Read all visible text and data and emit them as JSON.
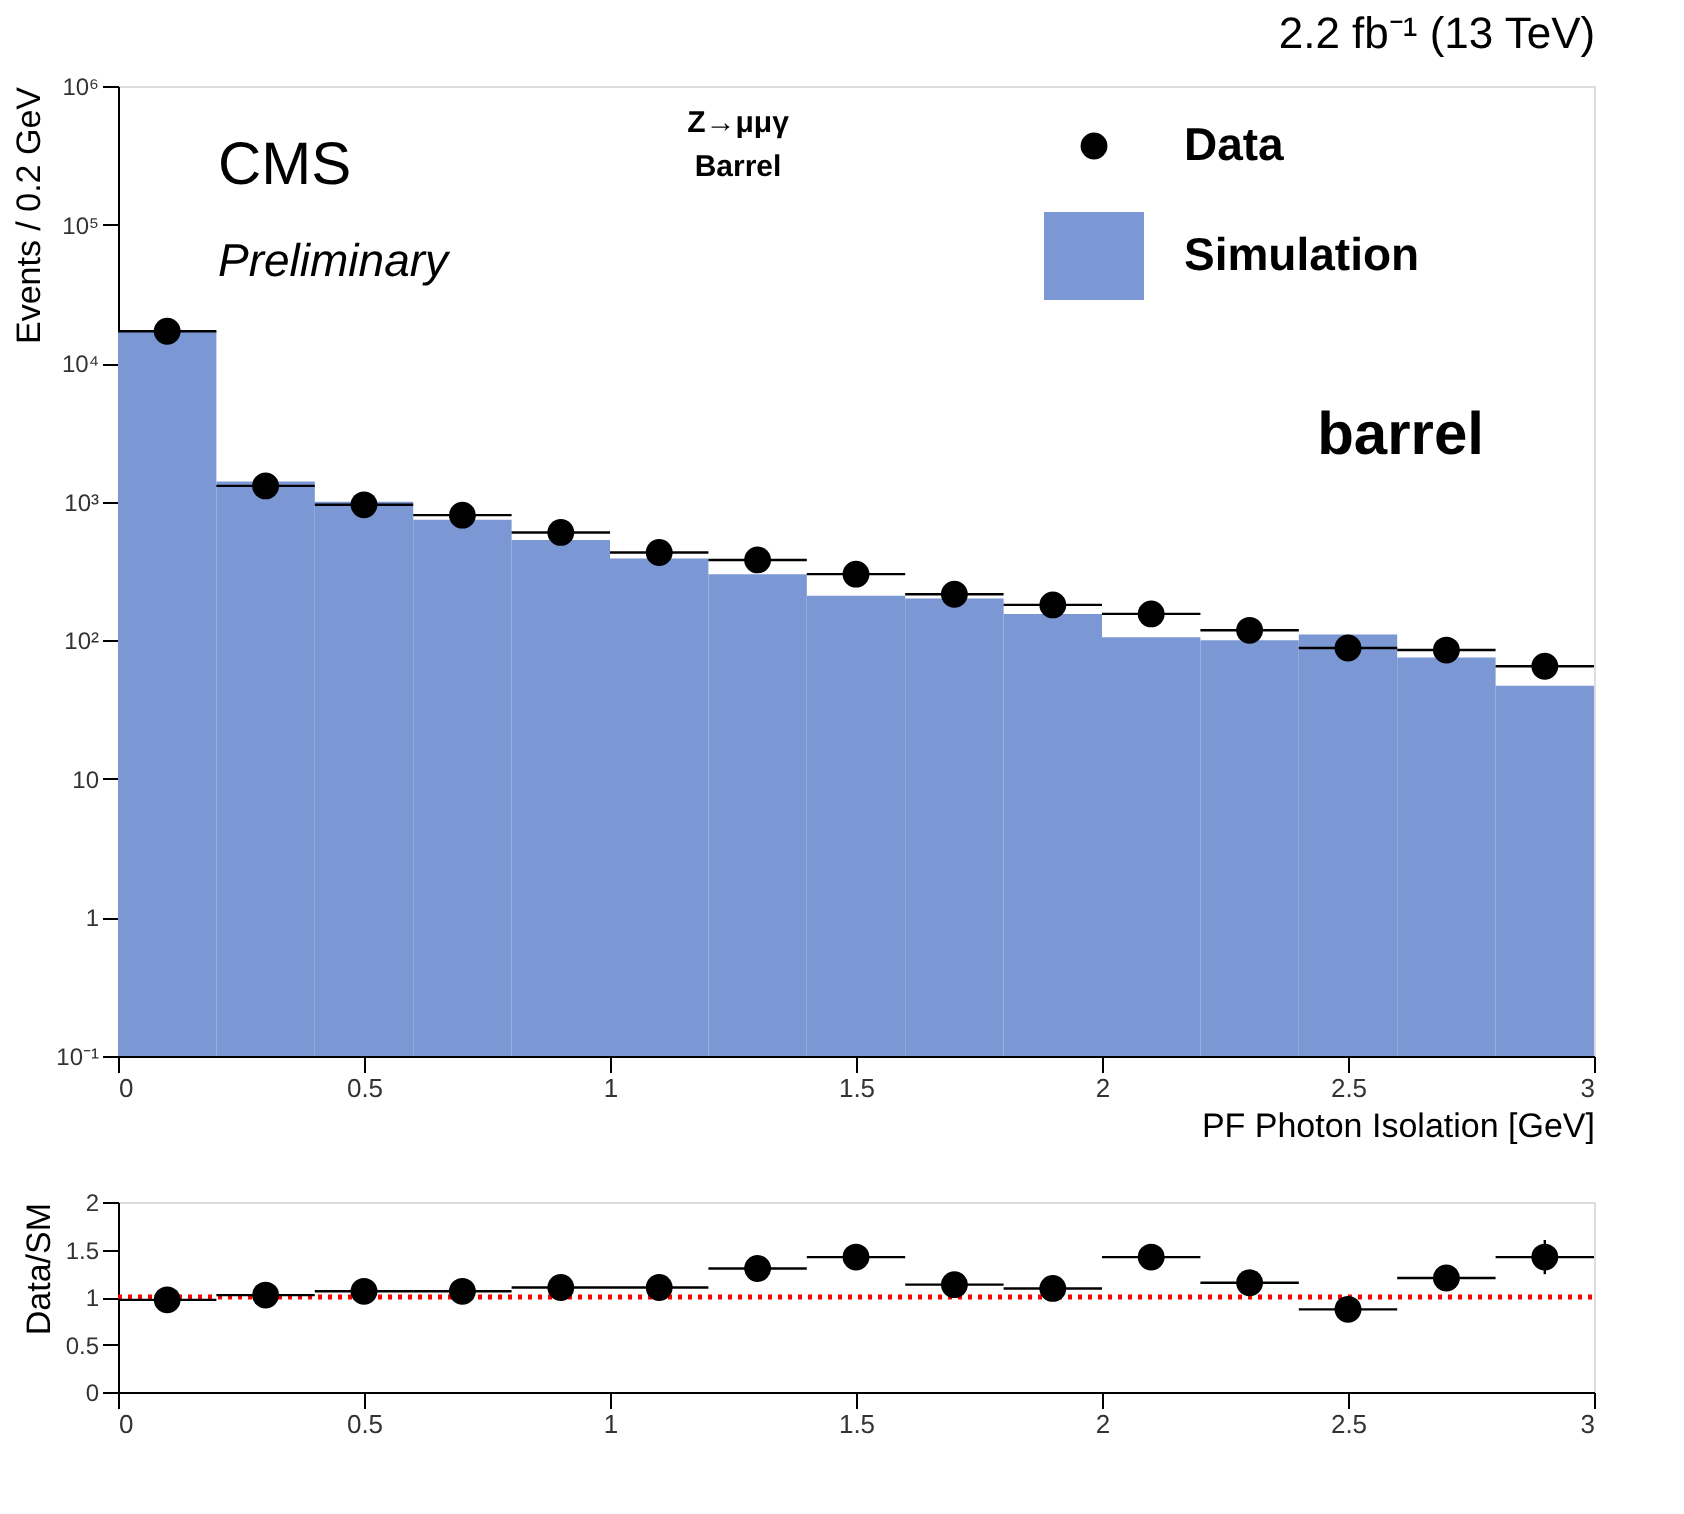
{
  "chart_data": [
    {
      "type": "histogram",
      "title": "2.2 fb⁻¹ (13 TeV)",
      "xlabel": "PF Photon Isolation [GeV]",
      "ylabel": "Events / 0.2 GeV",
      "bins": [
        0,
        0.2,
        0.4,
        0.6,
        0.8,
        1.0,
        1.2,
        1.4,
        1.6,
        1.8,
        2.0,
        2.2,
        2.4,
        2.6,
        2.8,
        3.0
      ],
      "series": [
        {
          "name": "Data",
          "type": "scatter",
          "color": "#000000",
          "x": [
            0.1,
            0.3,
            0.5,
            0.7,
            0.9,
            1.1,
            1.3,
            1.5,
            1.7,
            1.9,
            2.1,
            2.3,
            2.5,
            2.7,
            2.9
          ],
          "values": [
            17000,
            1300,
            950,
            800,
            600,
            430,
            380,
            300,
            215,
            180,
            155,
            118,
            88,
            85,
            65
          ],
          "xerrors": [
            0.1,
            0.1,
            0.1,
            0.1,
            0.1,
            0.1,
            0.1,
            0.1,
            0.1,
            0.1,
            0.1,
            0.1,
            0.1,
            0.1,
            0.1
          ]
        },
        {
          "name": "Simulation",
          "type": "histogram",
          "color": "#7b97d4",
          "values": [
            17000,
            1400,
            1000,
            740,
            530,
            390,
            300,
            210,
            200,
            155,
            105,
            100,
            110,
            75,
            47
          ]
        }
      ],
      "log": "y",
      "xlim": [
        0,
        3
      ],
      "xticks": [
        0,
        0.5,
        1,
        1.5,
        2,
        2.5,
        3
      ],
      "ylim": [
        0.1,
        1000000
      ],
      "yticks": [
        {
          "value": 0.1,
          "label": "10⁻¹"
        },
        1,
        10,
        {
          "value": 100,
          "label": "10²"
        },
        {
          "value": 1000,
          "label": "10³"
        },
        {
          "value": 10000,
          "label": "10⁴"
        },
        {
          "value": 100000,
          "label": "10⁵"
        },
        {
          "value": 1000000,
          "label": "10⁶"
        }
      ],
      "grid": false,
      "legend": "top right",
      "marker": "circle",
      "annotations": [
        "CMS",
        "Preliminary",
        "Z→μμγ",
        "Barrel",
        "barrel"
      ]
    },
    {
      "type": "scatter",
      "ylabel": "Data/SM",
      "color": "#000000",
      "marker": "circle",
      "x": [
        0.1,
        0.3,
        0.5,
        0.7,
        0.9,
        1.1,
        1.3,
        1.5,
        1.7,
        1.9,
        2.1,
        2.3,
        2.5,
        2.7,
        2.9
      ],
      "values": [
        0.97,
        1.02,
        1.06,
        1.06,
        1.1,
        1.1,
        1.3,
        1.42,
        1.13,
        1.09,
        1.42,
        1.15,
        0.87,
        1.2,
        1.42
      ],
      "errors": [
        0.03,
        0.03,
        0.04,
        0.04,
        0.05,
        0.05,
        0.06,
        0.07,
        0.07,
        0.07,
        0.08,
        0.09,
        0.08,
        0.13,
        0.18
      ],
      "xerrors": [
        0.1,
        0.1,
        0.1,
        0.1,
        0.1,
        0.1,
        0.1,
        0.1,
        0.1,
        0.1,
        0.1,
        0.1,
        0.1,
        0.1,
        0.1
      ],
      "xlim": [
        0,
        3
      ],
      "xticks": [
        0,
        0.5,
        1,
        1.5,
        2,
        2.5,
        3
      ],
      "ylim": [
        0,
        2
      ],
      "yticks": [
        0,
        0.5,
        1,
        1.5,
        2
      ],
      "grid": false,
      "ref_lines": [
        {
          "axis": "y",
          "value": 1,
          "color": "#ff0000",
          "line_style": "dotted"
        }
      ]
    }
  ]
}
